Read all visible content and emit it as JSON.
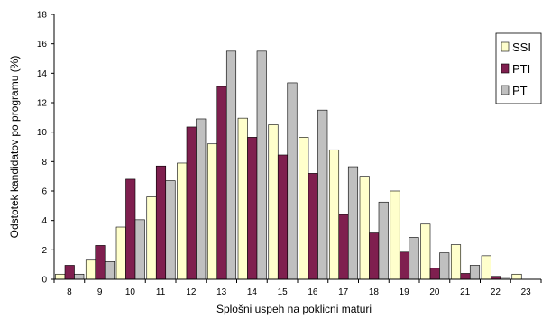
{
  "chart_data": {
    "type": "bar",
    "title": "",
    "xlabel": "Splošni uspeh na poklicni maturi",
    "ylabel": "Odstotek kandidatov po programu (%)",
    "ylim": [
      0,
      18
    ],
    "yticks": [
      "0",
      "2",
      "4",
      "6",
      "8",
      "10",
      "12",
      "14",
      "16",
      "18"
    ],
    "categories": [
      "8",
      "9",
      "10",
      "11",
      "12",
      "13",
      "14",
      "15",
      "16",
      "17",
      "18",
      "19",
      "20",
      "21",
      "22",
      "23"
    ],
    "grid": false,
    "legend_position": "right",
    "series": [
      {
        "name": "SSI",
        "color": "#ffffcc",
        "values": [
          0.35,
          1.3,
          3.55,
          5.6,
          7.9,
          9.2,
          10.95,
          10.5,
          9.65,
          8.8,
          7.0,
          6.0,
          3.75,
          2.35,
          1.6,
          0.35
        ]
      },
      {
        "name": "PTI",
        "color": "#7f1f4f",
        "values": [
          0.95,
          2.3,
          6.8,
          7.7,
          10.35,
          13.1,
          9.65,
          8.45,
          7.2,
          4.4,
          3.15,
          1.85,
          0.75,
          0.4,
          0.2,
          0
        ]
      },
      {
        "name": "PT",
        "color": "#c0c0c0",
        "values": [
          0.35,
          1.2,
          4.05,
          6.7,
          10.9,
          15.5,
          15.5,
          13.35,
          11.5,
          7.65,
          5.25,
          2.85,
          1.8,
          0.95,
          0.15,
          0
        ]
      }
    ]
  }
}
